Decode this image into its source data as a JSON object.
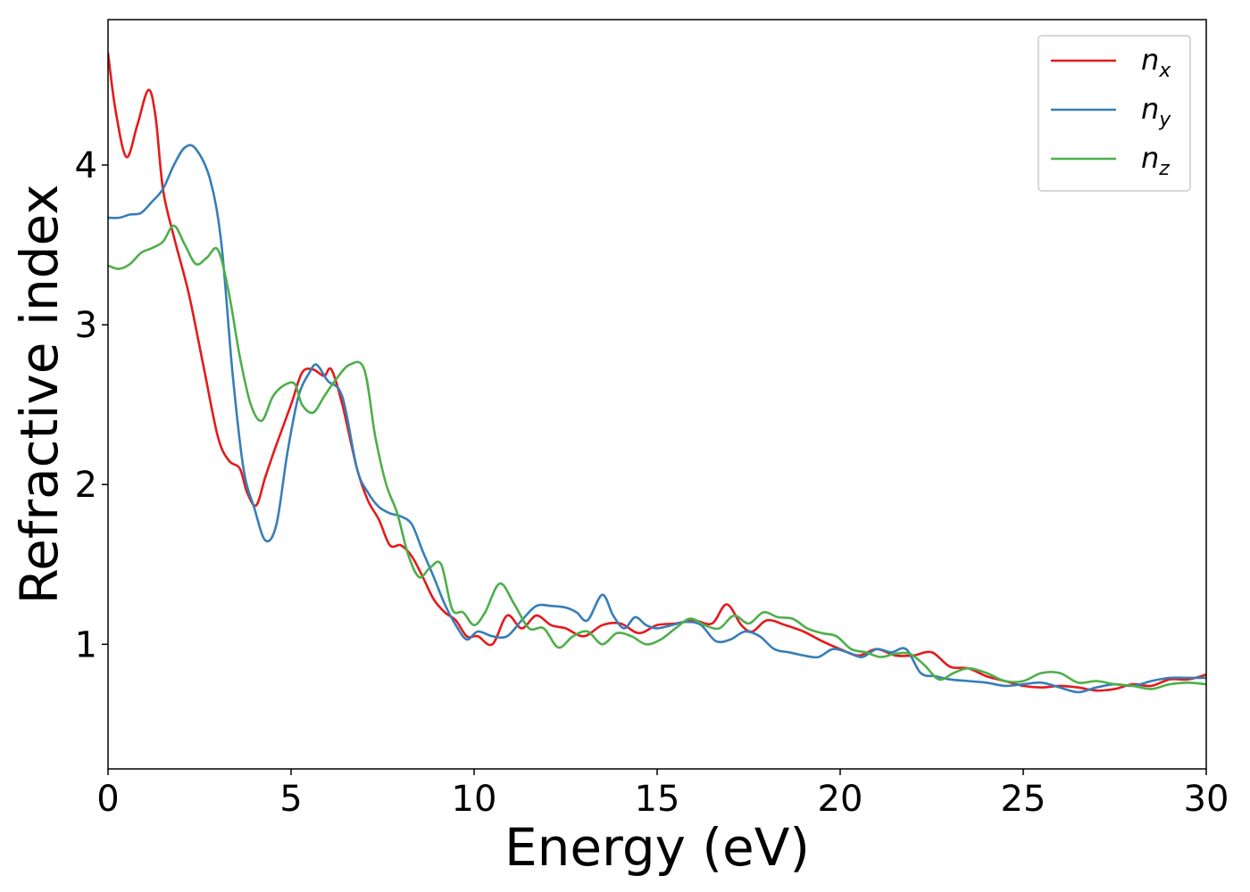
{
  "chart_data": {
    "type": "line",
    "title": "",
    "xlabel": "Energy (eV)",
    "ylabel": "Refractive index",
    "xlim": [
      0,
      30
    ],
    "ylim": [
      0.22,
      4.91
    ],
    "xticks": [
      0,
      5,
      10,
      15,
      20,
      25,
      30
    ],
    "yticks": [
      1,
      2,
      3,
      4
    ],
    "xtick_labels": [
      "0",
      "5",
      "10",
      "15",
      "20",
      "25",
      "30"
    ],
    "ytick_labels": [
      "1",
      "2",
      "3",
      "4"
    ],
    "grid": false,
    "legend_position": "top-right",
    "series": [
      {
        "name": "n_x",
        "label_base": "n",
        "label_sub": "x",
        "color": "#e41a1c",
        "x": [
          0,
          0.2,
          0.5,
          0.8,
          1.1,
          1.3,
          1.5,
          1.8,
          2.2,
          2.6,
          3.0,
          3.3,
          3.6,
          3.8,
          4.05,
          4.3,
          4.6,
          5.0,
          5.3,
          5.6,
          5.9,
          6.1,
          6.4,
          6.8,
          7.1,
          7.4,
          7.7,
          8.0,
          8.3,
          8.6,
          8.9,
          9.2,
          9.5,
          9.8,
          10.1,
          10.5,
          10.9,
          11.3,
          11.7,
          12.1,
          12.5,
          13.0,
          13.5,
          14.0,
          14.5,
          15.0,
          15.5,
          16.0,
          16.5,
          16.9,
          17.3,
          17.6,
          18.0,
          18.5,
          19.0,
          19.5,
          20.0,
          20.5,
          21.0,
          21.5,
          22.0,
          22.5,
          23.0,
          23.5,
          24.0,
          24.5,
          25.0,
          25.5,
          26.0,
          26.5,
          27.0,
          27.5,
          28.0,
          28.5,
          29.0,
          29.5,
          30.0
        ],
        "y": [
          4.7,
          4.35,
          4.05,
          4.25,
          4.47,
          4.3,
          3.85,
          3.55,
          3.2,
          2.75,
          2.3,
          2.15,
          2.1,
          1.95,
          1.87,
          2.05,
          2.25,
          2.5,
          2.7,
          2.72,
          2.68,
          2.72,
          2.5,
          2.1,
          1.9,
          1.78,
          1.62,
          1.62,
          1.55,
          1.42,
          1.28,
          1.2,
          1.15,
          1.05,
          1.05,
          1.0,
          1.18,
          1.1,
          1.18,
          1.12,
          1.1,
          1.05,
          1.12,
          1.13,
          1.07,
          1.12,
          1.13,
          1.15,
          1.13,
          1.25,
          1.12,
          1.08,
          1.15,
          1.12,
          1.08,
          1.02,
          0.97,
          0.93,
          0.97,
          0.93,
          0.93,
          0.95,
          0.86,
          0.85,
          0.8,
          0.77,
          0.74,
          0.73,
          0.74,
          0.73,
          0.71,
          0.72,
          0.75,
          0.74,
          0.78,
          0.78,
          0.81
        ]
      },
      {
        "name": "n_y",
        "label_base": "n",
        "label_sub": "y",
        "color": "#377eb8",
        "x": [
          0,
          0.3,
          0.6,
          0.9,
          1.2,
          1.5,
          1.8,
          2.1,
          2.4,
          2.8,
          3.1,
          3.4,
          3.7,
          4.0,
          4.3,
          4.6,
          4.9,
          5.2,
          5.5,
          5.7,
          6.0,
          6.4,
          6.8,
          7.1,
          7.4,
          7.7,
          8.0,
          8.3,
          8.6,
          8.9,
          9.2,
          9.5,
          9.8,
          10.1,
          10.5,
          10.9,
          11.3,
          11.7,
          12.1,
          12.5,
          12.8,
          13.1,
          13.5,
          13.8,
          14.1,
          14.4,
          14.7,
          15.0,
          15.4,
          15.8,
          16.2,
          16.6,
          17.0,
          17.4,
          17.8,
          18.2,
          18.6,
          19.0,
          19.4,
          19.8,
          20.2,
          20.6,
          21.0,
          21.4,
          21.8,
          22.2,
          22.6,
          23.0,
          23.5,
          24.0,
          24.5,
          25.0,
          25.5,
          26.0,
          26.5,
          27.0,
          27.5,
          28.0,
          28.5,
          29.0,
          29.5,
          30.0
        ],
        "y": [
          3.67,
          3.67,
          3.69,
          3.7,
          3.77,
          3.85,
          4.0,
          4.11,
          4.1,
          3.9,
          3.5,
          2.7,
          2.1,
          1.85,
          1.65,
          1.75,
          2.2,
          2.55,
          2.7,
          2.75,
          2.65,
          2.55,
          2.1,
          1.95,
          1.86,
          1.82,
          1.8,
          1.75,
          1.58,
          1.42,
          1.25,
          1.12,
          1.03,
          1.08,
          1.05,
          1.05,
          1.15,
          1.24,
          1.24,
          1.23,
          1.2,
          1.15,
          1.31,
          1.18,
          1.1,
          1.17,
          1.12,
          1.1,
          1.12,
          1.14,
          1.12,
          1.02,
          1.03,
          1.08,
          1.05,
          0.97,
          0.95,
          0.93,
          0.92,
          0.97,
          0.95,
          0.92,
          0.97,
          0.95,
          0.97,
          0.82,
          0.8,
          0.78,
          0.77,
          0.76,
          0.74,
          0.75,
          0.76,
          0.73,
          0.7,
          0.73,
          0.75,
          0.74,
          0.77,
          0.79,
          0.79,
          0.79
        ]
      },
      {
        "name": "n_z",
        "label_base": "n",
        "label_sub": "z",
        "color": "#4daf4a",
        "x": [
          0,
          0.3,
          0.6,
          0.9,
          1.2,
          1.5,
          1.8,
          2.1,
          2.4,
          2.7,
          3.0,
          3.3,
          3.6,
          3.9,
          4.2,
          4.5,
          4.8,
          5.1,
          5.3,
          5.6,
          5.9,
          6.2,
          6.6,
          7.0,
          7.3,
          7.6,
          7.9,
          8.2,
          8.5,
          8.8,
          9.1,
          9.4,
          9.7,
          10.0,
          10.3,
          10.7,
          11.1,
          11.5,
          11.9,
          12.3,
          12.7,
          13.1,
          13.5,
          13.9,
          14.3,
          14.7,
          15.1,
          15.5,
          15.9,
          16.3,
          16.7,
          17.1,
          17.5,
          17.9,
          18.3,
          18.7,
          19.1,
          19.5,
          19.9,
          20.3,
          20.7,
          21.1,
          21.5,
          21.9,
          22.3,
          22.7,
          23.1,
          23.5,
          24.0,
          24.5,
          25.0,
          25.5,
          26.0,
          26.5,
          27.0,
          27.5,
          28.0,
          28.5,
          29.0,
          29.5,
          30.0
        ],
        "y": [
          3.37,
          3.35,
          3.38,
          3.45,
          3.48,
          3.52,
          3.62,
          3.5,
          3.38,
          3.42,
          3.47,
          3.2,
          2.8,
          2.5,
          2.4,
          2.55,
          2.62,
          2.63,
          2.5,
          2.45,
          2.55,
          2.65,
          2.75,
          2.72,
          2.3,
          2.0,
          1.82,
          1.56,
          1.42,
          1.48,
          1.5,
          1.22,
          1.2,
          1.12,
          1.2,
          1.38,
          1.25,
          1.1,
          1.1,
          0.98,
          1.05,
          1.08,
          1.0,
          1.07,
          1.05,
          1.0,
          1.03,
          1.1,
          1.16,
          1.12,
          1.1,
          1.18,
          1.13,
          1.2,
          1.17,
          1.16,
          1.1,
          1.07,
          1.05,
          0.97,
          0.95,
          0.92,
          0.94,
          0.94,
          0.87,
          0.78,
          0.82,
          0.85,
          0.82,
          0.77,
          0.77,
          0.82,
          0.82,
          0.76,
          0.77,
          0.75,
          0.74,
          0.72,
          0.75,
          0.76,
          0.75
        ]
      }
    ]
  }
}
